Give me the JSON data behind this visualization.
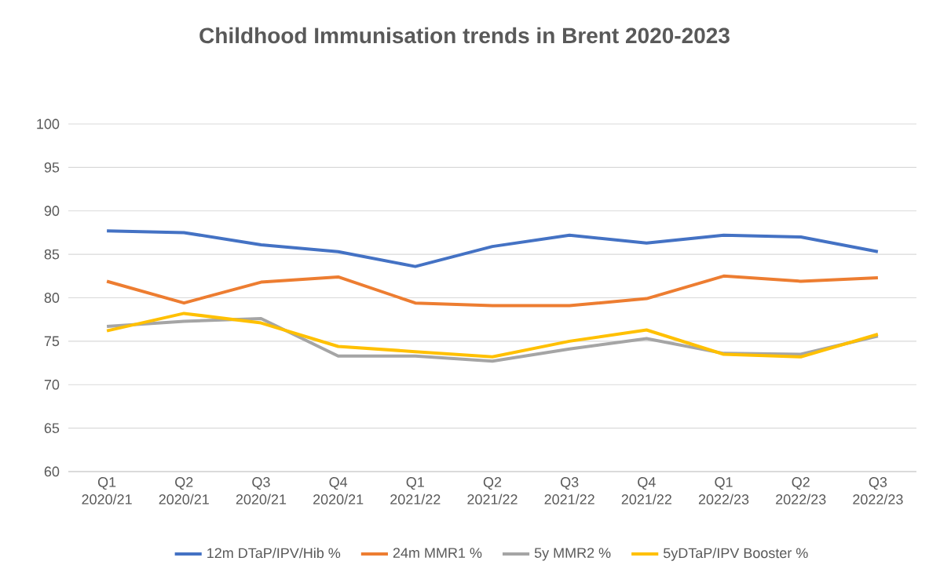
{
  "chart_data": {
    "type": "line",
    "title": "Childhood Immunisation trends in Brent 2020-2023",
    "categories": [
      "Q1 2020/21",
      "Q2 2020/21",
      "Q3 2020/21",
      "Q4 2020/21",
      "Q1 2021/22",
      "Q2 2021/22",
      "Q3 2021/22",
      "Q4 2021/22",
      "Q1 2022/23",
      "Q2 2022/23",
      "Q3 2022/23"
    ],
    "series": [
      {
        "name": "12m DTaP/IPV/Hib %",
        "color": "#4472c4",
        "values": [
          87.7,
          87.5,
          86.1,
          85.3,
          83.6,
          85.9,
          87.2,
          86.3,
          87.2,
          87.0,
          85.3
        ]
      },
      {
        "name": "24m MMR1 %",
        "color": "#ed7d31",
        "values": [
          81.9,
          79.4,
          81.8,
          82.4,
          79.4,
          79.1,
          79.1,
          79.9,
          82.5,
          81.9,
          82.3
        ]
      },
      {
        "name": "5y MMR2 %",
        "color": "#a5a5a5",
        "values": [
          76.7,
          77.3,
          77.6,
          73.3,
          73.3,
          72.7,
          74.1,
          75.3,
          73.6,
          73.5,
          75.6
        ]
      },
      {
        "name": "5yDTaP/IPV Booster %",
        "color": "#ffc000",
        "values": [
          76.2,
          78.2,
          77.1,
          74.4,
          73.8,
          73.2,
          75.0,
          76.3,
          73.5,
          73.2,
          75.8
        ]
      }
    ],
    "ylim": [
      60,
      100
    ],
    "yticks": [
      60,
      65,
      70,
      75,
      80,
      85,
      90,
      95,
      100
    ],
    "grid": "y",
    "legend": "bottom",
    "marker": "none",
    "line_style": "solid"
  }
}
